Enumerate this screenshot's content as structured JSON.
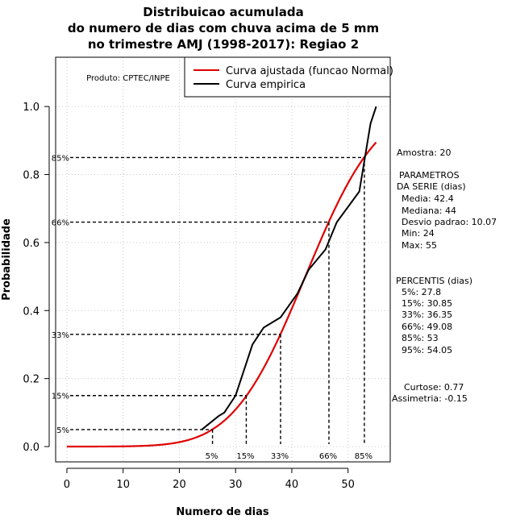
{
  "chart_data": {
    "type": "line",
    "title": [
      "Distribuicao acumulada",
      "do numero de dias com chuva acima de 5 mm",
      "no trimestre AMJ (1998-2017): Regiao 2"
    ],
    "xlabel": "Numero de dias",
    "ylabel": "Probabilidade",
    "xlim": [
      -2,
      57.5
    ],
    "ylim": [
      -0.045,
      1.145
    ],
    "xticks": [
      0,
      10,
      20,
      30,
      40,
      50
    ],
    "yticks": [
      0.0,
      0.2,
      0.4,
      0.6,
      0.8,
      1.0
    ],
    "ytick_labels": [
      "0.0",
      "0.2",
      "0.4",
      "0.6",
      "0.8",
      "1.0"
    ],
    "grid": true,
    "legend_position": "top-right",
    "product_label": "Produto: CPTEC/INPE",
    "series": [
      {
        "name": "Curva ajustada (funcao Normal)",
        "kind": "normal_cdf",
        "mean": 42.4,
        "sd": 10.07,
        "x_range": [
          0,
          55
        ],
        "color": "#e00000"
      },
      {
        "name": "Curva empirica",
        "kind": "empirical",
        "color": "#000000",
        "x": [
          24,
          27,
          28,
          30,
          31,
          33,
          35,
          38,
          41,
          43,
          46,
          47,
          48,
          52,
          54,
          55
        ],
        "y": [
          0.05,
          0.09,
          0.1,
          0.15,
          0.2,
          0.3,
          0.35,
          0.38,
          0.45,
          0.52,
          0.58,
          0.62,
          0.66,
          0.75,
          0.95,
          1.0
        ]
      }
    ],
    "percentile_markers": [
      {
        "label": "5%",
        "y_label": "5%",
        "prob": 0.05,
        "x": 25.9
      },
      {
        "label": "15%",
        "y_label": "15%",
        "prob": 0.15,
        "x": 31.9
      },
      {
        "label": "33%",
        "y_label": "33%",
        "prob": 0.33,
        "x": 38.0
      },
      {
        "label": "66%",
        "y_label": "66%",
        "prob": 0.66,
        "x": 46.6
      },
      {
        "label": "85%",
        "y_label": "85%",
        "prob": 0.85,
        "x": 52.9
      }
    ],
    "stats": {
      "amostra": "Amostra: 20",
      "params_title": [
        "PARAMETROS",
        "DA SERIE (dias)"
      ],
      "params": [
        "Media: 42.4",
        "Mediana: 44",
        "Desvio padrao: 10.07",
        "Min: 24",
        "Max: 55"
      ],
      "percentis_title": "PERCENTIS (dias)",
      "percentis": [
        "5%: 27.8",
        "15%: 30.85",
        "33%: 36.35",
        "66%: 49.08",
        "85%: 53",
        "95%: 54.05"
      ],
      "curtose": "Curtose: 0.77",
      "assimetria": "Assimetria: -0.15"
    }
  }
}
